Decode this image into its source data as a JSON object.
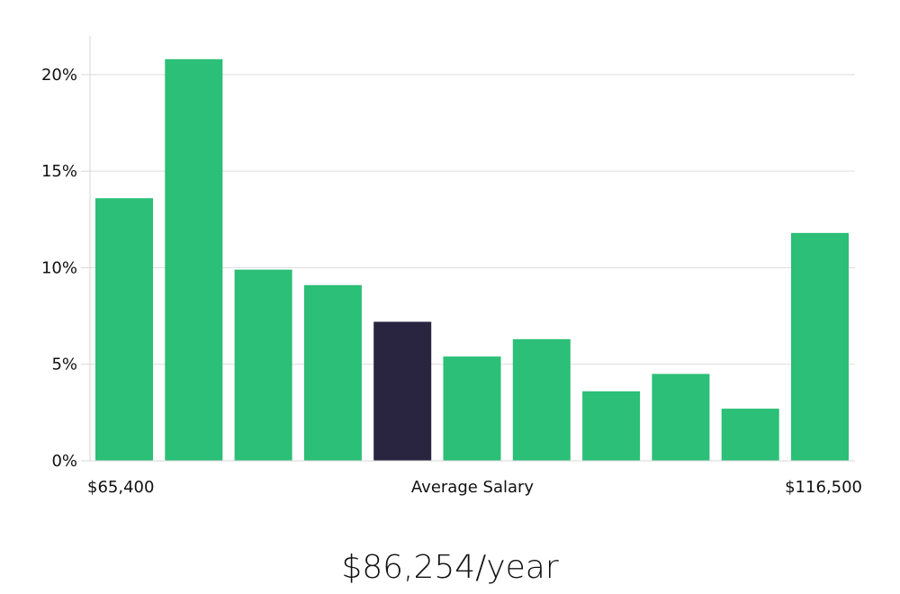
{
  "summary": {
    "value": "$86,254/year"
  },
  "colors": {
    "bar": "#2bbf77",
    "highlight": "#29243f",
    "grid": "#dedede",
    "axis": "#d7d7d7",
    "text": "#111111"
  },
  "chart_data": {
    "type": "bar",
    "values": [
      13.6,
      20.8,
      9.9,
      9.1,
      7.2,
      5.4,
      6.3,
      3.6,
      4.5,
      2.7,
      11.8
    ],
    "highlight_index": 4,
    "ylim": [
      0,
      22
    ],
    "yticks": [
      "0%",
      "5%",
      "10%",
      "15%",
      "20%"
    ],
    "ytick_values": [
      0,
      5,
      10,
      15,
      20
    ],
    "x_labels": {
      "left": "$65,400",
      "center": "Average Salary",
      "right": "$116,500"
    },
    "grid": true
  }
}
